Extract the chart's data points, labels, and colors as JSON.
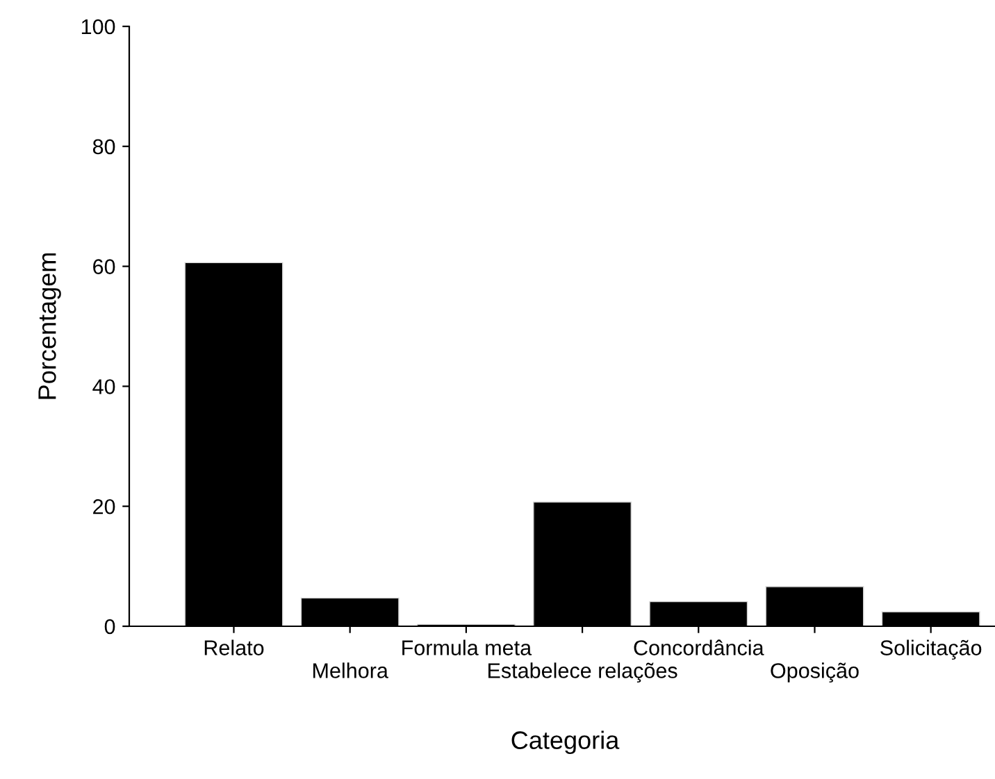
{
  "chart_data": {
    "type": "bar",
    "xlabel": "Categoria",
    "ylabel": "Porcentagem",
    "categories": [
      "Relato",
      "Melhora",
      "Formula meta",
      "Estabelece relações",
      "Concordância",
      "Oposição",
      "Solicitação"
    ],
    "values": [
      60.6,
      4.7,
      0.3,
      20.7,
      4.1,
      6.6,
      2.4
    ],
    "color": "#000000",
    "ylim": [
      0,
      100
    ],
    "yticks": [
      0,
      20,
      40,
      60,
      80,
      100
    ],
    "grid": false,
    "legend": false
  }
}
